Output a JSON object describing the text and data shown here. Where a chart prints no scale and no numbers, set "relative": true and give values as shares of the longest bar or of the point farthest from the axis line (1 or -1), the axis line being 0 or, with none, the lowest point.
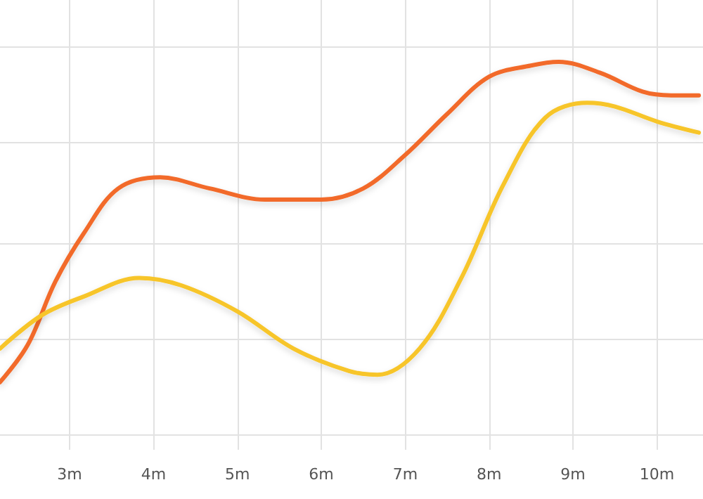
{
  "chart_data": {
    "type": "line",
    "relative": true,
    "grid": true,
    "marker": "none",
    "line_style": "solid",
    "xlim": [
      2.17,
      10.55
    ],
    "xticks": [
      {
        "value": 3,
        "label": "3m"
      },
      {
        "value": 4,
        "label": "4m"
      },
      {
        "value": 5,
        "label": "5m"
      },
      {
        "value": 6,
        "label": "6m"
      },
      {
        "value": 7,
        "label": "7m"
      },
      {
        "value": 8,
        "label": "8m"
      },
      {
        "value": 9,
        "label": "9m"
      },
      {
        "value": 10,
        "label": "10m"
      }
    ],
    "series": [
      {
        "color": "#f26b2a",
        "x": [
          2.17,
          2.5,
          2.83,
          3.17,
          3.58,
          4.08,
          4.67,
          5.33,
          6,
          6.5,
          7,
          7.5,
          8,
          8.5,
          8.83,
          9.33,
          9.83,
          10.17,
          10.5
        ],
        "values": [
          0.14,
          0.24,
          0.41,
          0.54,
          0.66,
          0.69,
          0.66,
          0.63,
          0.63,
          0.66,
          0.75,
          0.86,
          0.96,
          0.99,
          1,
          0.97,
          0.92,
          0.91,
          0.91
        ]
      },
      {
        "color": "#f7c52a",
        "x": [
          2.17,
          2.67,
          3.17,
          3.83,
          4.33,
          5,
          5.67,
          6.33,
          6.67,
          7.17,
          7.67,
          8.17,
          8.67,
          9.17,
          9.5,
          10,
          10.5
        ],
        "values": [
          0.23,
          0.32,
          0.37,
          0.42,
          0.4,
          0.33,
          0.23,
          0.17,
          0.16,
          0.23,
          0.42,
          0.67,
          0.85,
          0.89,
          0.88,
          0.84,
          0.81
        ]
      }
    ]
  }
}
